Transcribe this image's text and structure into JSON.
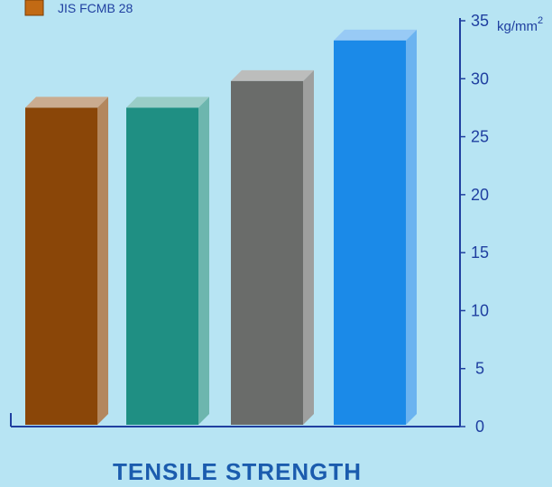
{
  "chart_data": {
    "type": "bar",
    "title": "TENSILE STRENGTH",
    "unit": "kg/mm",
    "unit_sup": "2",
    "ylim": [
      0,
      35
    ],
    "yticks": [
      0,
      5,
      10,
      15,
      20,
      25,
      30,
      35
    ],
    "legend": [
      {
        "label": "JIS FCMB 28",
        "color": "#c26a14"
      }
    ],
    "series": [
      {
        "values": [
          27.5,
          27.5,
          29.8,
          33.3
        ]
      }
    ],
    "bar_colors": [
      "#8a4608",
      "#1f8f83",
      "#6a6c6a",
      "#1b8ae8"
    ],
    "background": "#b7e4f3"
  }
}
